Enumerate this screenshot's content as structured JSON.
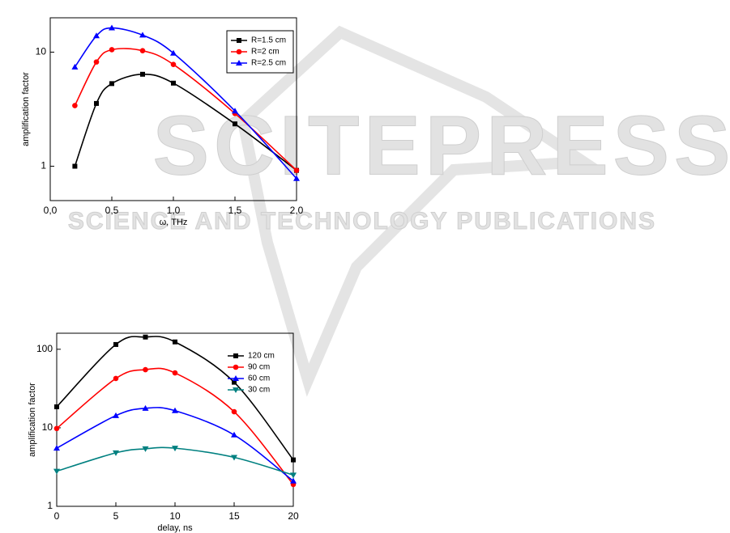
{
  "watermark": {
    "title": "SCITEPRESS",
    "subtitle": "SCIENCE AND TECHNOLOGY PUBLICATIONS"
  },
  "chart_data": [
    {
      "type": "line",
      "log_y": true,
      "legend": "upper right",
      "legend_frame": true,
      "xlabel": "ω, THz",
      "ylabel": "amplification factor",
      "xlim": [
        0,
        2
      ],
      "xticks": [
        {
          "value": 0,
          "label": "0,0"
        },
        {
          "value": 0.5,
          "label": "0,5"
        },
        {
          "value": 1,
          "label": "1,0"
        },
        {
          "value": 1.5,
          "label": "1,5"
        },
        {
          "value": 2,
          "label": "2,0"
        }
      ],
      "ylim": [
        0.5,
        20
      ],
      "yticks": [
        1,
        10
      ],
      "x": [
        0.2,
        0.375,
        0.5,
        0.75,
        1.0,
        1.5,
        2.0
      ],
      "series": [
        {
          "name": "R=1.5 cm",
          "color": "#000000",
          "marker": "square",
          "values": [
            1.0,
            3.55,
            5.3,
            6.4,
            5.35,
            2.35,
            0.92
          ]
        },
        {
          "name": "R=2 cm",
          "color": "#ff0000",
          "marker": "circle",
          "values": [
            3.4,
            8.2,
            10.5,
            10.3,
            7.8,
            2.9,
            0.92
          ]
        },
        {
          "name": "R=2.5 cm",
          "color": "#0000ff",
          "marker": "triangle",
          "values": [
            7.4,
            13.9,
            16.3,
            14.1,
            9.8,
            3.05,
            0.78
          ]
        }
      ]
    },
    {
      "type": "line",
      "log_y": true,
      "legend": "upper right",
      "legend_frame": false,
      "xlabel": "delay, ns",
      "ylabel": "amplification factor",
      "xlim": [
        0,
        20
      ],
      "xticks": [
        0,
        5,
        10,
        15,
        20
      ],
      "ylim": [
        1,
        160
      ],
      "yticks": [
        1,
        10,
        100
      ],
      "x": [
        0,
        5,
        7.5,
        10,
        15,
        20
      ],
      "series": [
        {
          "name": "120 cm",
          "color": "#000000",
          "marker": "square",
          "values": [
            18.5,
            115,
            143,
            124,
            38,
            3.9
          ]
        },
        {
          "name": "90 cm",
          "color": "#ff0000",
          "marker": "circle",
          "values": [
            9.8,
            42.5,
            55,
            50,
            16,
            1.9
          ]
        },
        {
          "name": "60 cm",
          "color": "#0000ff",
          "marker": "triangle",
          "values": [
            5.5,
            14.3,
            17.7,
            16.5,
            8.1,
            2.1
          ]
        },
        {
          "name": "30 cm",
          "color": "#008080",
          "marker": "triangle-down",
          "values": [
            2.8,
            4.8,
            5.4,
            5.5,
            4.2,
            2.5
          ]
        }
      ]
    }
  ]
}
